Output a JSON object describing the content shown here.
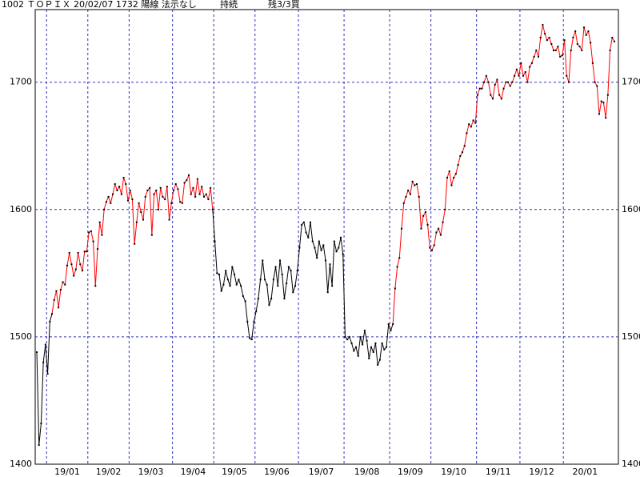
{
  "header": {
    "title": "1002 ＴＯＰＩＸ 20/02/07 1732 陽線 法示なし",
    "status": "持続",
    "remaining": "残3/3買"
  },
  "chart_data": {
    "type": "line",
    "ylim": [
      1400,
      1757
    ],
    "yticks": [
      1400,
      1500,
      1600,
      1700
    ],
    "grid": true,
    "categories": [
      null,
      null,
      null,
      null,
      null,
      "19/01",
      null,
      null,
      null,
      null,
      null,
      null,
      null,
      null,
      null,
      null,
      null,
      null,
      null,
      null,
      null,
      null,
      null,
      null,
      "19/02",
      null,
      null,
      null,
      null,
      null,
      null,
      null,
      null,
      null,
      null,
      null,
      null,
      null,
      null,
      null,
      null,
      null,
      null,
      "19/03",
      null,
      null,
      null,
      null,
      null,
      null,
      null,
      null,
      null,
      null,
      null,
      null,
      null,
      null,
      null,
      null,
      null,
      null,
      null,
      "19/04",
      null,
      null,
      null,
      null,
      null,
      null,
      null,
      null,
      null,
      null,
      null,
      null,
      null,
      null,
      null,
      null,
      null,
      null,
      "19/05",
      null,
      null,
      null,
      null,
      null,
      null,
      null,
      null,
      null,
      null,
      null,
      null,
      null,
      null,
      null,
      null,
      null,
      null,
      "19/06",
      null,
      null,
      null,
      null,
      null,
      null,
      null,
      null,
      null,
      null,
      null,
      null,
      null,
      null,
      null,
      null,
      null,
      null,
      null,
      "19/07",
      null,
      null,
      null,
      null,
      null,
      null,
      null,
      null,
      null,
      null,
      null,
      null,
      null,
      null,
      null,
      null,
      null,
      null,
      null,
      null,
      "19/08",
      null,
      null,
      null,
      null,
      null,
      null,
      null,
      null,
      null,
      null,
      null,
      null,
      null,
      null,
      null,
      null,
      null,
      null,
      null,
      null,
      "19/09",
      null,
      null,
      null,
      null,
      null,
      null,
      null,
      null,
      null,
      null,
      null,
      null,
      null,
      null,
      null,
      null,
      null,
      null,
      "19/10",
      null,
      null,
      null,
      null,
      null,
      null,
      null,
      null,
      null,
      null,
      null,
      null,
      null,
      null,
      null,
      null,
      null,
      null,
      null,
      null,
      "19/11",
      null,
      null,
      null,
      null,
      null,
      null,
      null,
      null,
      null,
      null,
      null,
      null,
      null,
      null,
      null,
      null,
      null,
      null,
      null,
      "19/12",
      null,
      null,
      null,
      null,
      null,
      null,
      null,
      null,
      null,
      null,
      null,
      null,
      null,
      null,
      null,
      null,
      null,
      null,
      null,
      "20/01",
      null,
      null,
      null,
      null,
      null,
      null,
      null,
      null,
      null,
      null,
      null,
      null,
      null,
      null,
      null,
      null,
      null,
      null,
      null,
      null,
      null,
      null,
      null
    ],
    "values": [
      1488,
      1415,
      1432,
      1480,
      1494,
      1471,
      1512,
      1518,
      1529,
      1536,
      1523,
      1537,
      1543,
      1541,
      1556,
      1566,
      1557,
      1548,
      1553,
      1566,
      1557,
      1552,
      1567,
      1567,
      1582,
      1583,
      1575,
      1540,
      1569,
      1590,
      1580,
      1600,
      1606,
      1610,
      1605,
      1612,
      1620,
      1615,
      1618,
      1612,
      1625,
      1620,
      1607,
      1615,
      1608,
      1573,
      1590,
      1605,
      1598,
      1592,
      1610,
      1615,
      1617,
      1580,
      1612,
      1615,
      1600,
      1617,
      1610,
      1608,
      1618,
      1592,
      1605,
      1615,
      1620,
      1616,
      1606,
      1605,
      1621,
      1623,
      1627,
      1612,
      1617,
      1610,
      1624,
      1612,
      1618,
      1610,
      1612,
      1608,
      1617,
      1600,
      1575,
      1550,
      1549,
      1536,
      1541,
      1552,
      1545,
      1540,
      1555,
      1549,
      1541,
      1545,
      1540,
      1532,
      1528,
      1512,
      1499,
      1498,
      1512,
      1520,
      1530,
      1545,
      1560,
      1545,
      1541,
      1525,
      1530,
      1545,
      1555,
      1540,
      1560,
      1549,
      1530,
      1542,
      1555,
      1552,
      1535,
      1540,
      1552,
      1570,
      1588,
      1590,
      1582,
      1578,
      1590,
      1575,
      1570,
      1562,
      1575,
      1568,
      1572,
      1560,
      1535,
      1557,
      1540,
      1575,
      1567,
      1570,
      1578,
      1565,
      1500,
      1498,
      1500,
      1495,
      1489,
      1492,
      1485,
      1500,
      1494,
      1505,
      1497,
      1483,
      1492,
      1488,
      1495,
      1478,
      1482,
      1495,
      1490,
      1492,
      1510,
      1505,
      1510,
      1538,
      1555,
      1562,
      1585,
      1605,
      1610,
      1615,
      1612,
      1622,
      1619,
      1620,
      1610,
      1585,
      1595,
      1598,
      1588,
      1570,
      1568,
      1572,
      1582,
      1585,
      1580,
      1590,
      1600,
      1625,
      1630,
      1619,
      1625,
      1628,
      1635,
      1642,
      1645,
      1650,
      1660,
      1667,
      1665,
      1670,
      1668,
      1690,
      1695,
      1695,
      1700,
      1705,
      1700,
      1690,
      1687,
      1698,
      1702,
      1690,
      1687,
      1695,
      1700,
      1700,
      1697,
      1700,
      1705,
      1710,
      1705,
      1715,
      1705,
      1708,
      1700,
      1712,
      1715,
      1720,
      1725,
      1720,
      1735,
      1745,
      1738,
      1733,
      1735,
      1730,
      1725,
      1725,
      1728,
      1720,
      1721,
      1733,
      1705,
      1700,
      1725,
      1735,
      1740,
      1730,
      1728,
      1725,
      1743,
      1737,
      1740,
      1731,
      1715,
      1700,
      1697,
      1675,
      1685,
      1684,
      1672,
      1690,
      1725,
      1735,
      1732
    ],
    "colors": [
      "black",
      "black",
      "black",
      "black",
      "black",
      "black",
      "black",
      "black",
      "red",
      "red",
      "red",
      "red",
      "red",
      "red",
      "red",
      "red",
      "red",
      "red",
      "red",
      "red",
      "red",
      "red",
      "red",
      "red",
      "red",
      "red",
      "red",
      "red",
      "red",
      "red",
      "red",
      "red",
      "red",
      "red",
      "red",
      "red",
      "red",
      "red",
      "red",
      "red",
      "red",
      "red",
      "red",
      "red",
      "red",
      "red",
      "red",
      "red",
      "red",
      "red",
      "red",
      "red",
      "red",
      "red",
      "red",
      "red",
      "red",
      "red",
      "red",
      "red",
      "red",
      "red",
      "red",
      "red",
      "red",
      "red",
      "red",
      "red",
      "red",
      "red",
      "red",
      "red",
      "red",
      "red",
      "red",
      "red",
      "red",
      "red",
      "red",
      "red",
      "red",
      "red",
      "black",
      "black",
      "black",
      "black",
      "black",
      "black",
      "black",
      "black",
      "black",
      "black",
      "black",
      "black",
      "black",
      "black",
      "black",
      "black",
      "black",
      "black",
      "black",
      "black",
      "black",
      "black",
      "black",
      "black",
      "black",
      "black",
      "black",
      "black",
      "black",
      "black",
      "black",
      "black",
      "black",
      "black",
      "black",
      "black",
      "black",
      "black",
      "black",
      "black",
      "black",
      "black",
      "black",
      "black",
      "black",
      "black",
      "black",
      "black",
      "black",
      "black",
      "black",
      "black",
      "black",
      "black",
      "black",
      "black",
      "black",
      "black",
      "black",
      "black",
      "black",
      "black",
      "black",
      "black",
      "black",
      "black",
      "black",
      "black",
      "black",
      "black",
      "black",
      "black",
      "black",
      "black",
      "black",
      "black",
      "black",
      "black",
      "black",
      "black",
      "black",
      "black",
      "black",
      "red",
      "red",
      "red",
      "red",
      "red",
      "red",
      "red",
      "red",
      "red",
      "red",
      "red",
      "red",
      "red",
      "red",
      "red",
      "red",
      "red",
      "red",
      "red",
      "red",
      "red",
      "red",
      "red",
      "red",
      "red",
      "red",
      "red",
      "red",
      "red",
      "red",
      "red",
      "red",
      "red",
      "red",
      "red",
      "red",
      "red",
      "red",
      "red",
      "red",
      "red",
      "red",
      "red",
      "red",
      "red",
      "red",
      "red",
      "red",
      "red",
      "red",
      "red",
      "red",
      "red",
      "red",
      "red",
      "red",
      "red",
      "red",
      "red",
      "red",
      "red",
      "red",
      "red",
      "red",
      "red",
      "red",
      "red",
      "red",
      "red",
      "red",
      "red",
      "red",
      "red",
      "red",
      "red",
      "red",
      "red",
      "red",
      "red",
      "red",
      "red",
      "red",
      "red",
      "red",
      "red",
      "red",
      "red",
      "red",
      "red",
      "red",
      "red",
      "red",
      "red",
      "red",
      "red",
      "red",
      "red",
      "red",
      "red",
      "red",
      "red",
      "red"
    ],
    "grid_color": "#3030c0",
    "marker_color": "#000000"
  }
}
